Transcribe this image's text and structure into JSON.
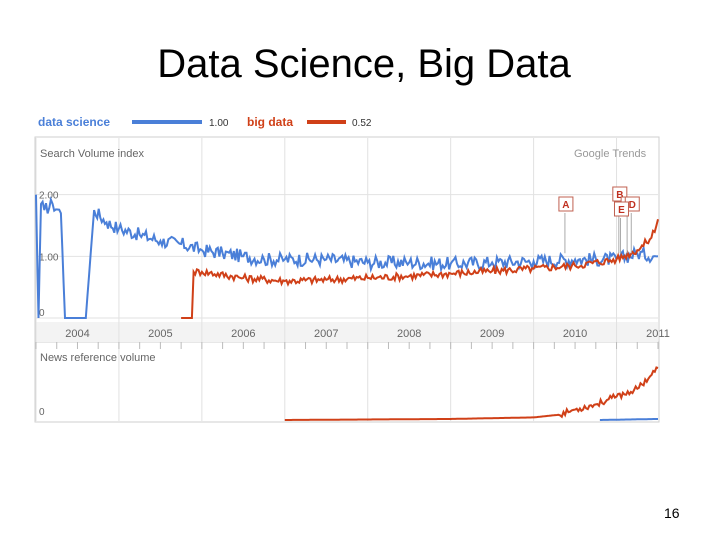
{
  "slide": {
    "title": "Data Science, Big Data",
    "page_number": "16"
  },
  "colors": {
    "data_science": "#4a7fd8",
    "big_data": "#d04018",
    "grid": "#e2e2e2",
    "frame": "#cfcfcf",
    "text": "#666666",
    "brand": "#999999"
  },
  "chart_data": {
    "type": "line",
    "source_label": "Google Trends",
    "search_panel": {
      "label": "Search Volume index",
      "x": [
        "2004",
        "2005",
        "2006",
        "2007",
        "2008",
        "2009",
        "2010",
        "2011"
      ],
      "x_unit": "year",
      "x_range": [
        2004.0,
        2011.5
      ],
      "yticks": [
        "0",
        "1.00",
        "2.00"
      ],
      "ylim": [
        0,
        2.4
      ],
      "annotations": [
        "A",
        "B",
        "C",
        "D",
        "E"
      ],
      "series": [
        {
          "name": "data science",
          "legend_value": "1.00",
          "points": [
            [
              2004.0,
              2.0
            ],
            [
              2004.03,
              0.0
            ],
            [
              2004.06,
              1.85
            ],
            [
              2004.1,
              1.75
            ],
            [
              2004.2,
              1.85
            ],
            [
              2004.3,
              1.7
            ],
            [
              2004.35,
              0.0
            ],
            [
              2004.6,
              0.0
            ],
            [
              2004.7,
              1.75
            ],
            [
              2004.85,
              1.55
            ],
            [
              2005.0,
              1.45
            ],
            [
              2005.25,
              1.35
            ],
            [
              2005.5,
              1.25
            ],
            [
              2005.75,
              1.2
            ],
            [
              2006.0,
              1.1
            ],
            [
              2006.25,
              1.05
            ],
            [
              2006.5,
              1.0
            ],
            [
              2006.75,
              0.95
            ],
            [
              2007.0,
              0.95
            ],
            [
              2007.5,
              0.95
            ],
            [
              2008.0,
              0.9
            ],
            [
              2008.5,
              0.9
            ],
            [
              2009.0,
              0.88
            ],
            [
              2009.5,
              0.9
            ],
            [
              2010.0,
              0.92
            ],
            [
              2010.5,
              0.95
            ],
            [
              2011.0,
              0.95
            ],
            [
              2011.25,
              1.05
            ],
            [
              2011.5,
              1.0
            ]
          ]
        },
        {
          "name": "big data",
          "legend_value": "0.52",
          "points": [
            [
              2005.75,
              0.0
            ],
            [
              2005.88,
              0.0
            ],
            [
              2005.9,
              0.75
            ],
            [
              2006.0,
              0.75
            ],
            [
              2006.5,
              0.65
            ],
            [
              2007.0,
              0.6
            ],
            [
              2007.5,
              0.62
            ],
            [
              2008.0,
              0.65
            ],
            [
              2008.5,
              0.68
            ],
            [
              2009.0,
              0.72
            ],
            [
              2009.5,
              0.76
            ],
            [
              2010.0,
              0.8
            ],
            [
              2010.5,
              0.85
            ],
            [
              2011.0,
              0.95
            ],
            [
              2011.25,
              1.1
            ],
            [
              2011.42,
              1.3
            ],
            [
              2011.5,
              1.6
            ]
          ]
        }
      ]
    },
    "news_panel": {
      "label": "News reference volume",
      "yticks": [
        "0"
      ],
      "series": [
        {
          "name": "big data",
          "points": [
            [
              2007.0,
              0.0
            ],
            [
              2009.0,
              0.02
            ],
            [
              2010.0,
              0.05
            ],
            [
              2010.3,
              0.1
            ],
            [
              2010.5,
              0.2
            ],
            [
              2010.75,
              0.3
            ],
            [
              2011.0,
              0.45
            ],
            [
              2011.25,
              0.6
            ],
            [
              2011.5,
              1.0
            ]
          ]
        },
        {
          "name": "data science",
          "points": [
            [
              2010.8,
              0.0
            ],
            [
              2011.5,
              0.02
            ]
          ]
        }
      ]
    }
  }
}
